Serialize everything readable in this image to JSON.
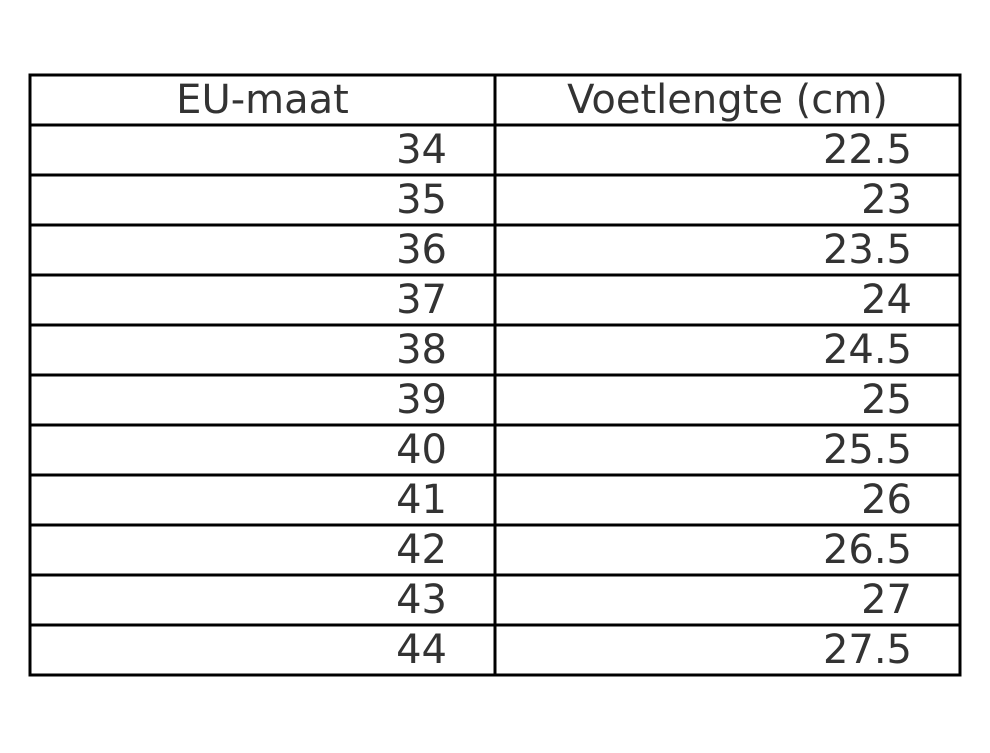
{
  "table": {
    "header": [
      "EU-maat",
      "Voetlengte (cm)"
    ],
    "rows": [
      [
        34,
        22.5
      ],
      [
        35,
        23
      ],
      [
        36,
        23.5
      ],
      [
        37,
        24
      ],
      [
        38,
        24.5
      ],
      [
        39,
        25
      ],
      [
        40,
        25.5
      ],
      [
        41,
        26
      ],
      [
        42,
        26.5
      ],
      [
        43,
        27
      ],
      [
        44,
        27.5
      ]
    ]
  }
}
